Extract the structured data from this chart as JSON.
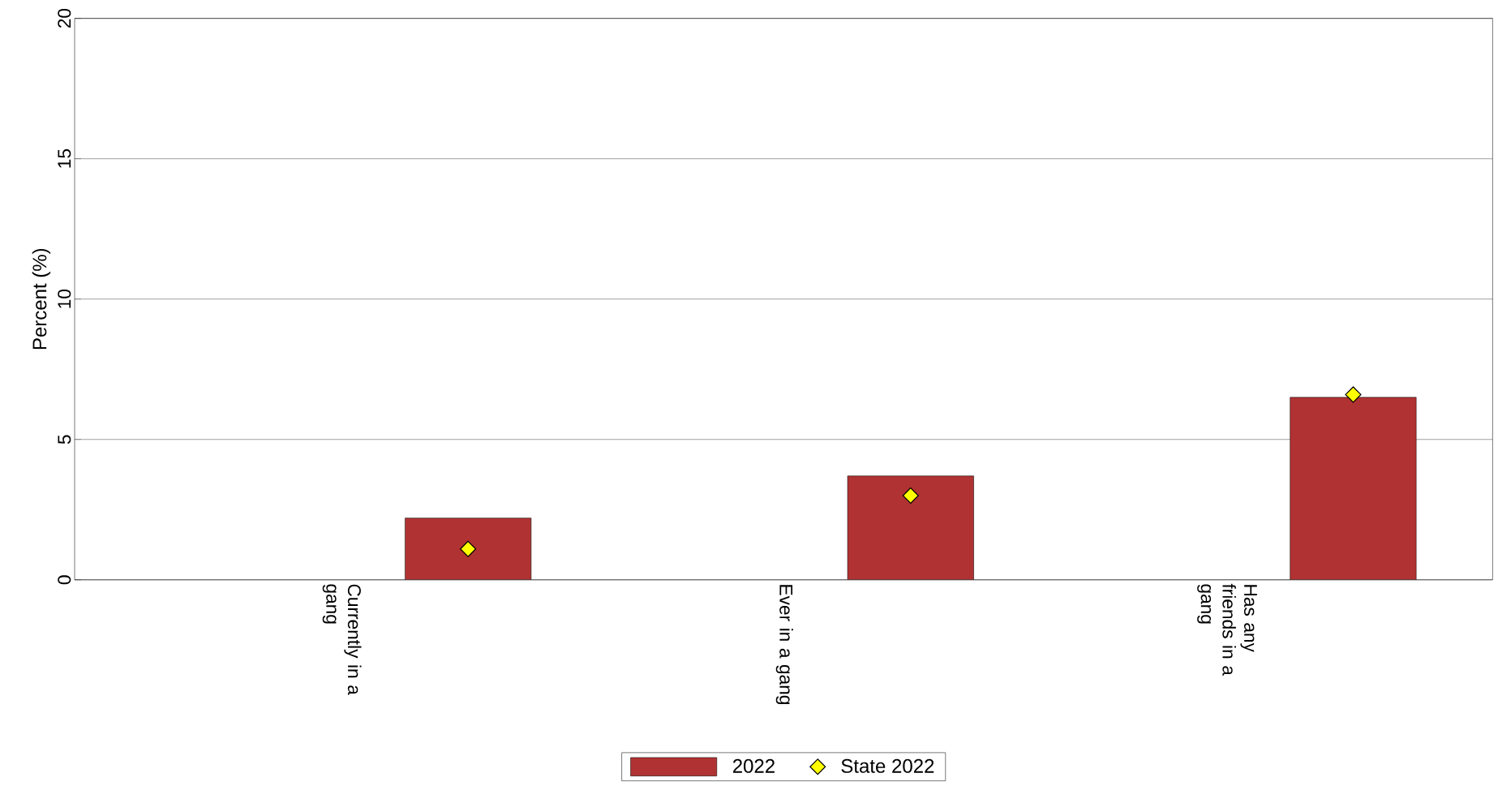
{
  "chart_data": {
    "type": "bar",
    "ylabel": "Percent (%)",
    "categories": [
      "Currently in a gang",
      "Ever in a gang",
      "Has any friends in a gang"
    ],
    "series": [
      {
        "name": "2022",
        "color": "#b03232",
        "values": [
          2.2,
          3.7,
          6.5
        ]
      },
      {
        "name": "State 2022",
        "type": "scatter",
        "color": "#ffff00",
        "marker": "diamond",
        "x": [
          "Currently in a gang",
          "Ever in a gang",
          "Has any friends in a gang"
        ],
        "values": [
          1.1,
          3.0,
          6.6
        ]
      }
    ],
    "ylim": [
      0,
      20
    ],
    "yticks": [
      0,
      5,
      10,
      15,
      20
    ],
    "grid": "y",
    "legend": "bottom"
  }
}
